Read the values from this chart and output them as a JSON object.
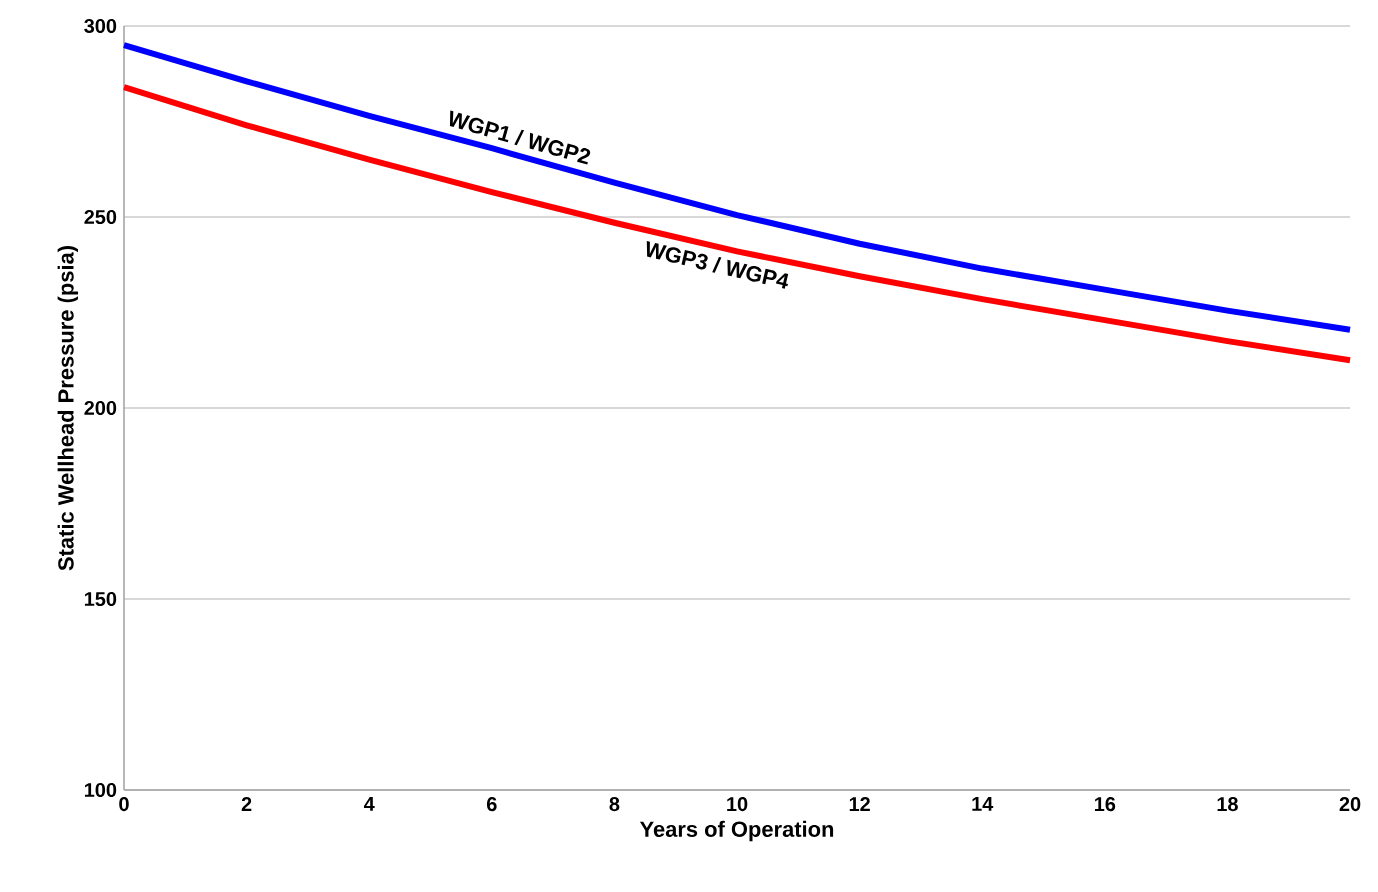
{
  "chart_data": {
    "type": "line",
    "xlabel": "Years of Operation",
    "ylabel": "Static Wellhead  Pressure (psia)",
    "x": [
      0,
      2,
      4,
      6,
      8,
      10,
      12,
      14,
      16,
      18,
      20
    ],
    "series": [
      {
        "name": "WGP1 / WGP2",
        "color": "#0000ff",
        "values": [
          295,
          285.5,
          276.5,
          268,
          259,
          250.5,
          243,
          236.5,
          231,
          225.5,
          220.5
        ]
      },
      {
        "name": "WGP3 / WGP4",
        "color": "#ff0000",
        "values": [
          284,
          274,
          265,
          256.5,
          248.5,
          241,
          234.5,
          228.5,
          223,
          217.5,
          212.5
        ]
      }
    ],
    "xlim": [
      0,
      20
    ],
    "xticks": [
      0,
      2,
      4,
      6,
      8,
      10,
      12,
      14,
      16,
      18,
      20
    ],
    "ylim": [
      100,
      300
    ],
    "yticks": [
      100,
      150,
      200,
      250,
      300
    ],
    "grid": "y",
    "marker": "none",
    "line_style": "solid"
  }
}
